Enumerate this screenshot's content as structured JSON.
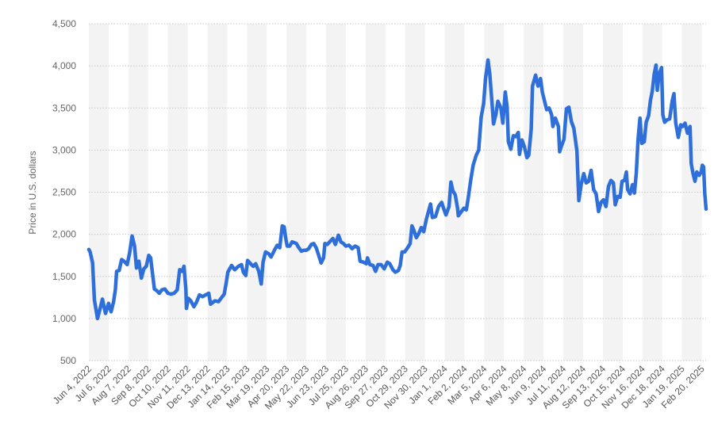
{
  "chart_data": {
    "type": "line",
    "ylabel": "Price in U.S. dollars",
    "xlabel": "",
    "ylim": [
      500,
      4500
    ],
    "yticks": [
      "500",
      "1,000",
      "1,500",
      "2,000",
      "2,500",
      "3,000",
      "3,500",
      "4,000",
      "4,500"
    ],
    "ytick_values": [
      500,
      1000,
      1500,
      2000,
      2500,
      3000,
      3500,
      4000,
      4500
    ],
    "grid": "horizontal dotted, alternating vertical bands",
    "xticks": [
      "Jun 4, 2022",
      "Jul 6, 2022",
      "Aug 7, 2022",
      "Sep 8, 2022",
      "Oct 10, 2022",
      "Nov 11, 2022",
      "Dec 13, 2022",
      "Jan 14, 2023",
      "Feb 15, 2023",
      "Mar 19, 2023",
      "Apr 20, 2023",
      "May 22, 2023",
      "Jun 23, 2023",
      "Jul 25, 2023",
      "Aug 26, 2023",
      "Sep 27, 2023",
      "Oct 29, 2023",
      "Nov 30, 2023",
      "Jan 1, 2024",
      "Feb 2, 2024",
      "Mar 5, 2024",
      "Apr 6, 2024",
      "May 8, 2024",
      "Jun 9, 2024",
      "Jul 11, 2024",
      "Aug 12, 2024",
      "Sep 13, 2024",
      "Oct 15, 2024",
      "Nov 16, 2024",
      "Dec 18, 2024",
      "Jan 19, 2025",
      "Feb 20, 2025"
    ],
    "series": [
      {
        "color": "#2f6fd9",
        "points": [
          [
            "Jun 4, 2022",
            1820
          ],
          [
            "Jun 6, 2022",
            1790
          ],
          [
            "Jun 10, 2022",
            1660
          ],
          [
            "Jun 13, 2022",
            1220
          ],
          [
            "Jun 18, 2022",
            1000
          ],
          [
            "Jun 22, 2022",
            1110
          ],
          [
            "Jun 26, 2022",
            1230
          ],
          [
            "Jul 1, 2022",
            1060
          ],
          [
            "Jul 6, 2022",
            1180
          ],
          [
            "Jul 10, 2022",
            1080
          ],
          [
            "Jul 14, 2022",
            1200
          ],
          [
            "Jul 17, 2022",
            1350
          ],
          [
            "Jul 19, 2022",
            1560
          ],
          [
            "Jul 23, 2022",
            1570
          ],
          [
            "Jul 27, 2022",
            1700
          ],
          [
            "Jul 31, 2022",
            1680
          ],
          [
            "Aug 5, 2022",
            1640
          ],
          [
            "Aug 9, 2022",
            1780
          ],
          [
            "Aug 13, 2022",
            1980
          ],
          [
            "Aug 17, 2022",
            1860
          ],
          [
            "Aug 20, 2022",
            1600
          ],
          [
            "Aug 24, 2022",
            1680
          ],
          [
            "Aug 28, 2022",
            1480
          ],
          [
            "Sep 1, 2022",
            1590
          ],
          [
            "Sep 5, 2022",
            1620
          ],
          [
            "Sep 9, 2022",
            1750
          ],
          [
            "Sep 12, 2022",
            1720
          ],
          [
            "Sep 14, 2022",
            1600
          ],
          [
            "Sep 18, 2022",
            1350
          ],
          [
            "Sep 22, 2022",
            1330
          ],
          [
            "Sep 26, 2022",
            1300
          ],
          [
            "Sep 30, 2022",
            1340
          ],
          [
            "Oct 5, 2022",
            1350
          ],
          [
            "Oct 10, 2022",
            1300
          ],
          [
            "Oct 15, 2022",
            1290
          ],
          [
            "Oct 20, 2022",
            1300
          ],
          [
            "Oct 25, 2022",
            1340
          ],
          [
            "Oct 29, 2022",
            1580
          ],
          [
            "Nov 2, 2022",
            1560
          ],
          [
            "Nov 5, 2022",
            1620
          ],
          [
            "Nov 8, 2022",
            1350
          ],
          [
            "Nov 9, 2022",
            1120
          ],
          [
            "Nov 12, 2022",
            1240
          ],
          [
            "Nov 16, 2022",
            1210
          ],
          [
            "Nov 21, 2022",
            1140
          ],
          [
            "Nov 25, 2022",
            1190
          ],
          [
            "Nov 30, 2022",
            1280
          ],
          [
            "Dec 5, 2022",
            1260
          ],
          [
            "Dec 10, 2022",
            1280
          ],
          [
            "Dec 15, 2022",
            1300
          ],
          [
            "Dec 18, 2022",
            1170
          ],
          [
            "Dec 25, 2022",
            1210
          ],
          [
            "Dec 31, 2022",
            1200
          ],
          [
            "Jan 5, 2023",
            1250
          ],
          [
            "Jan 9, 2023",
            1290
          ],
          [
            "Jan 12, 2023",
            1410
          ],
          [
            "Jan 15, 2023",
            1550
          ],
          [
            "Jan 21, 2023",
            1630
          ],
          [
            "Jan 26, 2023",
            1580
          ],
          [
            "Feb 1, 2023",
            1620
          ],
          [
            "Feb 6, 2023",
            1640
          ],
          [
            "Feb 9, 2023",
            1550
          ],
          [
            "Feb 13, 2023",
            1510
          ],
          [
            "Feb 16, 2023",
            1690
          ],
          [
            "Feb 21, 2023",
            1650
          ],
          [
            "Feb 25, 2023",
            1620
          ],
          [
            "Mar 1, 2023",
            1650
          ],
          [
            "Mar 6, 2023",
            1560
          ],
          [
            "Mar 10, 2023",
            1410
          ],
          [
            "Mar 13, 2023",
            1670
          ],
          [
            "Mar 17, 2023",
            1790
          ],
          [
            "Mar 22, 2023",
            1770
          ],
          [
            "Mar 26, 2023",
            1730
          ],
          [
            "Apr 1, 2023",
            1820
          ],
          [
            "Apr 5, 2023",
            1870
          ],
          [
            "Apr 9, 2023",
            1840
          ],
          [
            "Apr 13, 2023",
            2100
          ],
          [
            "Apr 16, 2023",
            2090
          ],
          [
            "Apr 19, 2023",
            1940
          ],
          [
            "Apr 21, 2023",
            1860
          ],
          [
            "Apr 25, 2023",
            1860
          ],
          [
            "Apr 29, 2023",
            1910
          ],
          [
            "May 3, 2023",
            1900
          ],
          [
            "May 6, 2023",
            1890
          ],
          [
            "May 9, 2023",
            1850
          ],
          [
            "May 14, 2023",
            1800
          ],
          [
            "May 18, 2023",
            1810
          ],
          [
            "May 22, 2023",
            1810
          ],
          [
            "May 26, 2023",
            1830
          ],
          [
            "May 30, 2023",
            1880
          ],
          [
            "Jun 3, 2023",
            1890
          ],
          [
            "Jun 7, 2023",
            1840
          ],
          [
            "Jun 11, 2023",
            1750
          ],
          [
            "Jun 15, 2023",
            1660
          ],
          [
            "Jun 19, 2023",
            1720
          ],
          [
            "Jun 21, 2023",
            1890
          ],
          [
            "Jun 25, 2023",
            1880
          ],
          [
            "Jun 30, 2023",
            1920
          ],
          [
            "Jul 4, 2023",
            1950
          ],
          [
            "Jul 8, 2023",
            1880
          ],
          [
            "Jul 13, 2023",
            1990
          ],
          [
            "Jul 17, 2023",
            1910
          ],
          [
            "Jul 21, 2023",
            1890
          ],
          [
            "Jul 25, 2023",
            1860
          ],
          [
            "Jul 30, 2023",
            1870
          ],
          [
            "Aug 4, 2023",
            1830
          ],
          [
            "Aug 9, 2023",
            1860
          ],
          [
            "Aug 14, 2023",
            1840
          ],
          [
            "Aug 17, 2023",
            1680
          ],
          [
            "Aug 22, 2023",
            1670
          ],
          [
            "Aug 27, 2023",
            1650
          ],
          [
            "Aug 29, 2023",
            1720
          ],
          [
            "Sep 2, 2023",
            1640
          ],
          [
            "Sep 7, 2023",
            1630
          ],
          [
            "Sep 11, 2023",
            1560
          ],
          [
            "Sep 15, 2023",
            1640
          ],
          [
            "Sep 20, 2023",
            1640
          ],
          [
            "Sep 25, 2023",
            1590
          ],
          [
            "Sep 30, 2023",
            1670
          ],
          [
            "Oct 4, 2023",
            1650
          ],
          [
            "Oct 9, 2023",
            1580
          ],
          [
            "Oct 13, 2023",
            1550
          ],
          [
            "Oct 18, 2023",
            1570
          ],
          [
            "Oct 21, 2023",
            1630
          ],
          [
            "Oct 24, 2023",
            1790
          ],
          [
            "Oct 28, 2023",
            1790
          ],
          [
            "Nov 2, 2023",
            1840
          ],
          [
            "Nov 6, 2023",
            1890
          ],
          [
            "Nov 9, 2023",
            2100
          ],
          [
            "Nov 12, 2023",
            2050
          ],
          [
            "Nov 16, 2023",
            1960
          ],
          [
            "Nov 20, 2023",
            2010
          ],
          [
            "Nov 24, 2023",
            2080
          ],
          [
            "Nov 28, 2023",
            2030
          ],
          [
            "Dec 2, 2023",
            2170
          ],
          [
            "Dec 6, 2023",
            2280
          ],
          [
            "Dec 9, 2023",
            2360
          ],
          [
            "Dec 12, 2023",
            2200
          ],
          [
            "Dec 17, 2023",
            2210
          ],
          [
            "Dec 22, 2023",
            2330
          ],
          [
            "Dec 27, 2023",
            2380
          ],
          [
            "Dec 31, 2023",
            2290
          ],
          [
            "Jan 3, 2024",
            2230
          ],
          [
            "Jan 8, 2024",
            2330
          ],
          [
            "Jan 11, 2024",
            2620
          ],
          [
            "Jan 14, 2024",
            2520
          ],
          [
            "Jan 18, 2024",
            2470
          ],
          [
            "Jan 22, 2024",
            2300
          ],
          [
            "Jan 23, 2024",
            2220
          ],
          [
            "Jan 27, 2024",
            2260
          ],
          [
            "Feb 1, 2024",
            2310
          ],
          [
            "Feb 5, 2024",
            2290
          ],
          [
            "Feb 8, 2024",
            2430
          ],
          [
            "Feb 12, 2024",
            2640
          ],
          [
            "Feb 16, 2024",
            2820
          ],
          [
            "Feb 21, 2024",
            2940
          ],
          [
            "Feb 25, 2024",
            3000
          ],
          [
            "Feb 29, 2024",
            3390
          ],
          [
            "Mar 4, 2024",
            3550
          ],
          [
            "Mar 7, 2024",
            3850
          ],
          [
            "Mar 11, 2024",
            4070
          ],
          [
            "Mar 14, 2024",
            3900
          ],
          [
            "Mar 18, 2024",
            3520
          ],
          [
            "Mar 20, 2024",
            3310
          ],
          [
            "Mar 24, 2024",
            3430
          ],
          [
            "Mar 27, 2024",
            3580
          ],
          [
            "Apr 1, 2024",
            3500
          ],
          [
            "Apr 4, 2024",
            3320
          ],
          [
            "Apr 8, 2024",
            3690
          ],
          [
            "Apr 11, 2024",
            3510
          ],
          [
            "Apr 13, 2024",
            3100
          ],
          [
            "Apr 17, 2024",
            3010
          ],
          [
            "Apr 21, 2024",
            3170
          ],
          [
            "Apr 25, 2024",
            3160
          ],
          [
            "Apr 29, 2024",
            3210
          ],
          [
            "May 1, 2024",
            2950
          ],
          [
            "May 5, 2024",
            3120
          ],
          [
            "May 9, 2024",
            3040
          ],
          [
            "May 13, 2024",
            2910
          ],
          [
            "May 16, 2024",
            2940
          ],
          [
            "May 20, 2024",
            3250
          ],
          [
            "May 22, 2024",
            3760
          ],
          [
            "May 27, 2024",
            3890
          ],
          [
            "May 31, 2024",
            3760
          ],
          [
            "Jun 4, 2024",
            3850
          ],
          [
            "Jun 7, 2024",
            3690
          ],
          [
            "Jun 11, 2024",
            3570
          ],
          [
            "Jun 14, 2024",
            3480
          ],
          [
            "Jun 18, 2024",
            3500
          ],
          [
            "Jun 22, 2024",
            3420
          ],
          [
            "Jun 24, 2024",
            3280
          ],
          [
            "Jun 28, 2024",
            3380
          ],
          [
            "Jul 3, 2024",
            3280
          ],
          [
            "Jul 5, 2024",
            2980
          ],
          [
            "Jul 8, 2024",
            3050
          ],
          [
            "Jul 12, 2024",
            3130
          ],
          [
            "Jul 16, 2024",
            3490
          ],
          [
            "Jul 20, 2024",
            3510
          ],
          [
            "Jul 24, 2024",
            3340
          ],
          [
            "Jul 28, 2024",
            3260
          ],
          [
            "Aug 2, 2024",
            2990
          ],
          [
            "Aug 5, 2024",
            2400
          ],
          [
            "Aug 9, 2024",
            2600
          ],
          [
            "Aug 13, 2024",
            2720
          ],
          [
            "Aug 17, 2024",
            2610
          ],
          [
            "Aug 21, 2024",
            2630
          ],
          [
            "Aug 25, 2024",
            2760
          ],
          [
            "Aug 29, 2024",
            2530
          ],
          [
            "Sep 2, 2024",
            2480
          ],
          [
            "Sep 6, 2024",
            2270
          ],
          [
            "Sep 10, 2024",
            2380
          ],
          [
            "Sep 14, 2024",
            2410
          ],
          [
            "Sep 18, 2024",
            2330
          ],
          [
            "Sep 22, 2024",
            2570
          ],
          [
            "Sep 26, 2024",
            2640
          ],
          [
            "Sep 30, 2024",
            2610
          ],
          [
            "Oct 3, 2024",
            2350
          ],
          [
            "Oct 7, 2024",
            2450
          ],
          [
            "Oct 11, 2024",
            2440
          ],
          [
            "Oct 14, 2024",
            2630
          ],
          [
            "Oct 18, 2024",
            2640
          ],
          [
            "Oct 21, 2024",
            2740
          ],
          [
            "Oct 23, 2024",
            2530
          ],
          [
            "Oct 27, 2024",
            2480
          ],
          [
            "Oct 31, 2024",
            2590
          ],
          [
            "Nov 3, 2024",
            2490
          ],
          [
            "Nov 6, 2024",
            2720
          ],
          [
            "Nov 9, 2024",
            3130
          ],
          [
            "Nov 12, 2024",
            3380
          ],
          [
            "Nov 15, 2024",
            3080
          ],
          [
            "Nov 19, 2024",
            3100
          ],
          [
            "Nov 22, 2024",
            3330
          ],
          [
            "Nov 26, 2024",
            3410
          ],
          [
            "Nov 29, 2024",
            3590
          ],
          [
            "Dec 2, 2024",
            3700
          ],
          [
            "Dec 5, 2024",
            3900
          ],
          [
            "Dec 8, 2024",
            4010
          ],
          [
            "Dec 10, 2024",
            3710
          ],
          [
            "Dec 13, 2024",
            3900
          ],
          [
            "Dec 17, 2024",
            3980
          ],
          [
            "Dec 19, 2024",
            3420
          ],
          [
            "Dec 22, 2024",
            3330
          ],
          [
            "Dec 26, 2024",
            3360
          ],
          [
            "Dec 30, 2024",
            3370
          ],
          [
            "Jan 3, 2025",
            3580
          ],
          [
            "Jan 6, 2025",
            3670
          ],
          [
            "Jan 9, 2025",
            3320
          ],
          [
            "Jan 13, 2025",
            3150
          ],
          [
            "Jan 17, 2025",
            3300
          ],
          [
            "Jan 20, 2025",
            3280
          ],
          [
            "Jan 24, 2025",
            3320
          ],
          [
            "Jan 28, 2025",
            3200
          ],
          [
            "Feb 1, 2025",
            3280
          ],
          [
            "Feb 3, 2025",
            2840
          ],
          [
            "Feb 6, 2025",
            2720
          ],
          [
            "Feb 9, 2025",
            2630
          ],
          [
            "Feb 12, 2025",
            2740
          ],
          [
            "Feb 16, 2025",
            2700
          ],
          [
            "Feb 19, 2025",
            2740
          ],
          [
            "Feb 21, 2025",
            2820
          ],
          [
            "Feb 23, 2025",
            2800
          ],
          [
            "Feb 25, 2025",
            2480
          ],
          [
            "Feb 27, 2025",
            2300
          ]
        ]
      }
    ]
  }
}
